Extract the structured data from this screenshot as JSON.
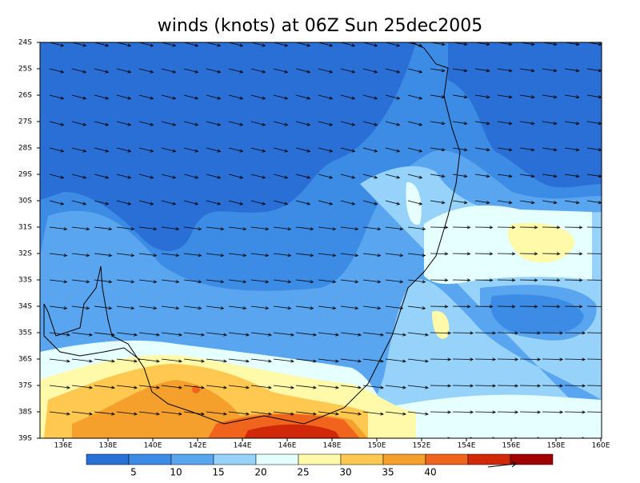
{
  "header": {
    "title": "winds (knots) at 06Z Sun 25dec2005"
  },
  "axes": {
    "lat_labels": [
      "24S",
      "25S",
      "26S",
      "27S",
      "28S",
      "29S",
      "30S",
      "31S",
      "32S",
      "33S",
      "34S",
      "35S",
      "36S",
      "37S",
      "38S",
      "39S"
    ],
    "lon_labels": [
      "136E",
      "138E",
      "140E",
      "142E",
      "144E",
      "146E",
      "148E",
      "150E",
      "152E",
      "154E",
      "156E",
      "158E",
      "160E"
    ]
  },
  "legend": {
    "colors": [
      "#2a6fd6",
      "#3c8ce6",
      "#5aa5f0",
      "#96d2fa",
      "#e6ffff",
      "#fffaaa",
      "#ffc850",
      "#f5a02d",
      "#f0641e",
      "#d2280a",
      "#a00000"
    ],
    "labels": [
      "5",
      "10",
      "15",
      "20",
      "25",
      "30",
      "35",
      "40"
    ]
  }
}
